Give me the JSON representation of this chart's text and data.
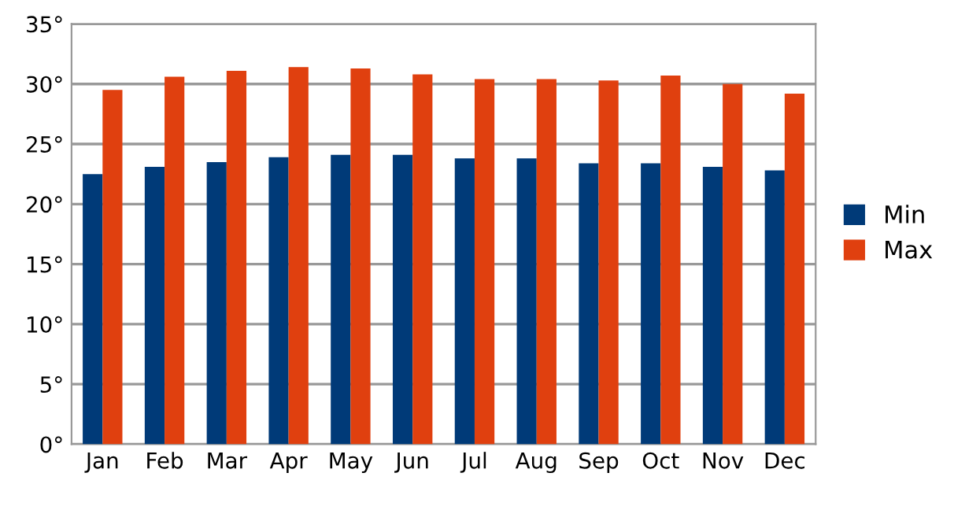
{
  "chart_data": {
    "type": "bar",
    "categories": [
      "Jan",
      "Feb",
      "Mar",
      "Apr",
      "May",
      "Jun",
      "Jul",
      "Aug",
      "Sep",
      "Oct",
      "Nov",
      "Dec"
    ],
    "series": [
      {
        "name": "Min",
        "color": "#003a78",
        "values": [
          22.5,
          23.1,
          23.5,
          23.9,
          24.1,
          24.1,
          23.8,
          23.8,
          23.4,
          23.4,
          23.1,
          22.8
        ]
      },
      {
        "name": "Max",
        "color": "#e0400f",
        "values": [
          29.5,
          30.6,
          31.1,
          31.4,
          31.3,
          30.8,
          30.4,
          30.4,
          30.3,
          30.7,
          30.0,
          29.2
        ]
      }
    ],
    "ylim": [
      0,
      35
    ],
    "yticks": [
      {
        "value": 0,
        "label": "0°"
      },
      {
        "value": 5,
        "label": "5°"
      },
      {
        "value": 10,
        "label": "10°"
      },
      {
        "value": 15,
        "label": "15°"
      },
      {
        "value": 20,
        "label": "20°"
      },
      {
        "value": 25,
        "label": "25°"
      },
      {
        "value": 30,
        "label": "30°"
      },
      {
        "value": 35,
        "label": "35°"
      }
    ],
    "grid": "y",
    "legend": "right"
  }
}
